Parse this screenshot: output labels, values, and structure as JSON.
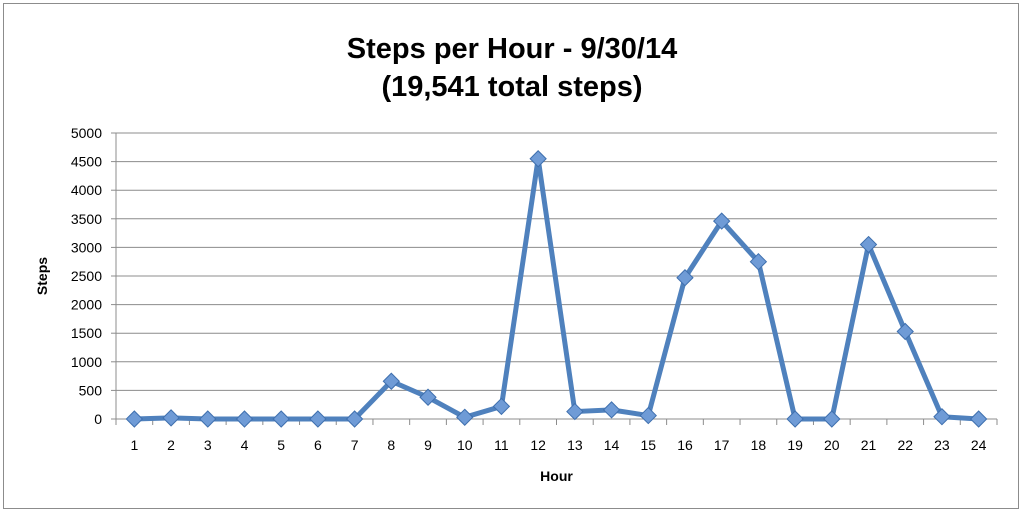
{
  "chart_data": {
    "type": "line",
    "title": [
      "Steps per Hour - 9/30/14",
      "(19,541 total steps)"
    ],
    "xlabel": "Hour",
    "ylabel": "Steps",
    "categories": [
      "1",
      "2",
      "3",
      "4",
      "5",
      "6",
      "7",
      "8",
      "9",
      "10",
      "11",
      "12",
      "13",
      "14",
      "15",
      "16",
      "17",
      "18",
      "19",
      "20",
      "21",
      "22",
      "23",
      "24"
    ],
    "series": [
      {
        "values": [
          0,
          20,
          0,
          0,
          0,
          0,
          0,
          660,
          380,
          30,
          220,
          4550,
          130,
          160,
          60,
          2470,
          3460,
          2750,
          0,
          0,
          3050,
          1530,
          40,
          0
        ]
      }
    ],
    "ylim": [
      0,
      5000
    ],
    "yticks": [
      "0",
      "500",
      "1000",
      "1500",
      "2000",
      "2500",
      "3000",
      "3500",
      "4000",
      "4500",
      "5000"
    ],
    "grid": "horizontal",
    "legend": "none",
    "colors": {
      "line": "#4f81bd",
      "marker_fill": "#6f9bd6",
      "marker_stroke": "#3e6fae",
      "grid": "#8c8c8c",
      "axis": "#8c8c8c"
    }
  }
}
